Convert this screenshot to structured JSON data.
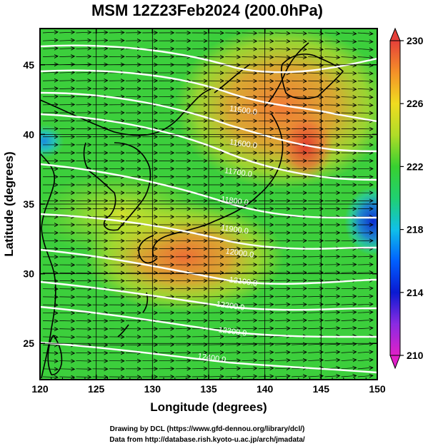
{
  "title": "MSM 12Z23Feb2024 (200.0hPa)",
  "credits": {
    "line1": "Drawing by DCL (https://www.gfd-dennou.org/library/dcl/)",
    "line2": "Data from http://database.rish.kyoto-u.ac.jp/arch/jmadata/"
  },
  "map": {
    "xlabel": "Longitude (degrees)",
    "ylabel": "Latitude  (degrees)",
    "xlim": [
      120,
      150
    ],
    "ylim": [
      22.4,
      47.6
    ],
    "xticks": [
      "120",
      "125",
      "130",
      "135",
      "140",
      "145",
      "150"
    ],
    "yticks": [
      "25",
      "30",
      "35",
      "40",
      "45"
    ],
    "grid": true,
    "contour_labels": [
      "11500.0",
      "11600.0",
      "11700.0",
      "11800.0",
      "11900.0",
      "12000.0",
      "12100.0",
      "12200.0",
      "12300.0",
      "12400.0"
    ]
  },
  "colorbar": {
    "min": 210,
    "max": 230,
    "ticks": [
      "230",
      "226",
      "222",
      "218",
      "214",
      "210"
    ],
    "colors": [
      "#e020c8",
      "#8a2be2",
      "#0a1ad2",
      "#0055ff",
      "#00aaff",
      "#1ce6d4",
      "#20d8a0",
      "#28d040",
      "#6ad22c",
      "#a6dc28",
      "#e6e628",
      "#f4c818",
      "#f8a020",
      "#f07838",
      "#e64a3c"
    ]
  },
  "field_colors": {
    "background_green": "#3ccf3c",
    "warm_orange": "#f08a35",
    "hot_red": "#e8452f",
    "yellow": "#d8e02a",
    "cold_blue": "#1240d8",
    "cyan": "#1fb8e0"
  }
}
